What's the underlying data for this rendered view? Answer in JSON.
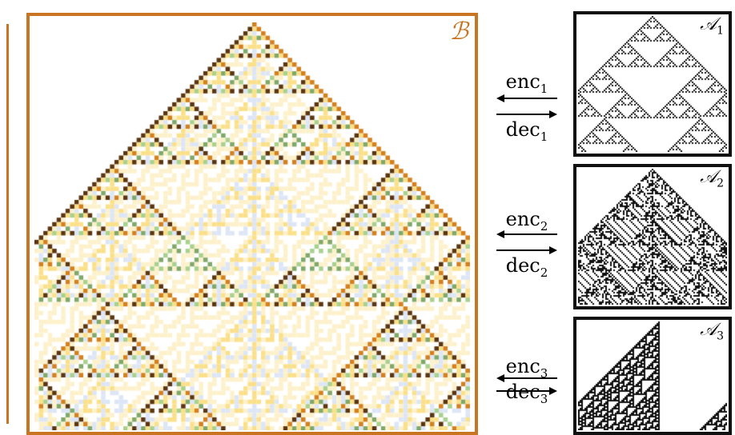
{
  "composite": {
    "label": "ℬ",
    "border_color": "#c87420",
    "palette": [
      "#ffffff",
      "#dde6f6",
      "#fdf1cc",
      "#fbe08a",
      "#a9d18e",
      "#d4801e",
      "#7fa86a",
      "#5a3512"
    ]
  },
  "automata": [
    {
      "label": "𝒜",
      "index": "1",
      "enc": "enc",
      "dec": "dec",
      "enc_sub": "1",
      "dec_sub": "1"
    },
    {
      "label": "𝒜",
      "index": "2",
      "enc": "enc",
      "dec": "dec",
      "enc_sub": "2",
      "dec_sub": "2"
    },
    {
      "label": "𝒜",
      "index": "3",
      "enc": "enc",
      "dec": "dec",
      "enc_sub": "3",
      "dec_sub": "3"
    }
  ]
}
